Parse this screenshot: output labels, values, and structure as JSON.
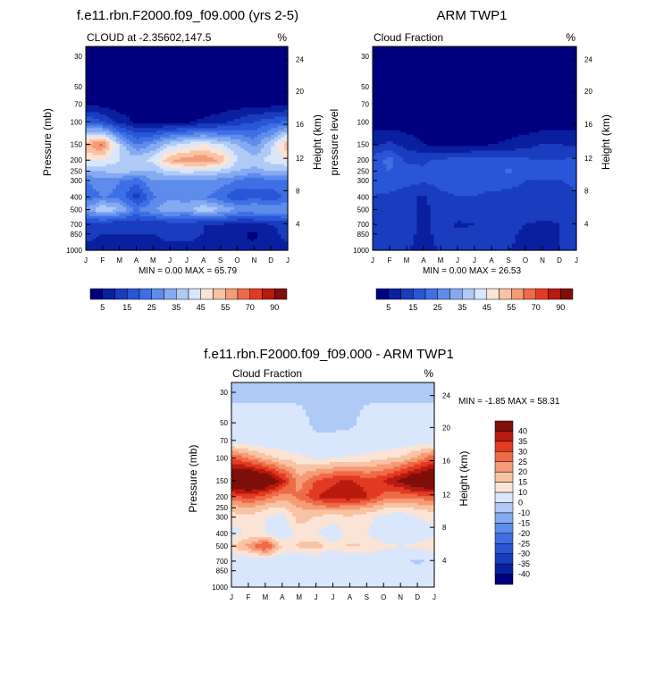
{
  "chart_data": [
    {
      "type": "heatmap",
      "title": "f.e11.rbn.F2000.f09_f09.000 (yrs 2-5)",
      "left_label": "CLOUD at -2.35602,147.5",
      "right_label": "%",
      "ylabel": "Pressure (mb)",
      "y2label": "Height (km)",
      "x_ticks": [
        "J",
        "F",
        "M",
        "A",
        "M",
        "J",
        "J",
        "A",
        "S",
        "O",
        "N",
        "D",
        "J"
      ],
      "y_ticks": [
        "30",
        "50",
        "70",
        "100",
        "150",
        "200",
        "250",
        "300",
        "400",
        "500",
        "700",
        "850",
        "1000"
      ],
      "y2_ticks": [
        "24",
        "20",
        "16",
        "12",
        "8",
        "4"
      ],
      "minmax_text": "MIN =   0.00 MAX =  65.79",
      "min": 0.0,
      "max": 65.79,
      "colorbar_labels": [
        "5",
        "15",
        "25",
        "35",
        "45",
        "55",
        "70",
        "90"
      ],
      "rows": [
        {
          "p": 30,
          "values": [
            2,
            2,
            2,
            2,
            2,
            2,
            2,
            2,
            2,
            2,
            2,
            2,
            2
          ]
        },
        {
          "p": 50,
          "values": [
            2,
            2,
            2,
            2,
            2,
            2,
            2,
            2,
            2,
            2,
            2,
            2,
            2
          ]
        },
        {
          "p": 70,
          "values": [
            4,
            3,
            2,
            2,
            2,
            2,
            2,
            2,
            2,
            2,
            3,
            3,
            4
          ]
        },
        {
          "p": 100,
          "values": [
            20,
            15,
            8,
            4,
            3,
            3,
            4,
            6,
            8,
            12,
            15,
            18,
            20
          ]
        },
        {
          "p": 150,
          "values": [
            55,
            62,
            38,
            25,
            30,
            38,
            42,
            45,
            40,
            35,
            28,
            38,
            55
          ]
        },
        {
          "p": 200,
          "values": [
            45,
            45,
            40,
            38,
            42,
            55,
            58,
            60,
            55,
            40,
            38,
            42,
            45
          ]
        },
        {
          "p": 250,
          "values": [
            35,
            35,
            38,
            35,
            35,
            40,
            42,
            40,
            38,
            35,
            33,
            35,
            35
          ]
        },
        {
          "p": 300,
          "values": [
            25,
            28,
            25,
            22,
            30,
            30,
            30,
            30,
            28,
            25,
            20,
            25,
            25
          ]
        },
        {
          "p": 400,
          "values": [
            22,
            25,
            24,
            12,
            24,
            28,
            28,
            26,
            22,
            15,
            20,
            15,
            22
          ]
        },
        {
          "p": 500,
          "values": [
            30,
            40,
            35,
            25,
            30,
            35,
            32,
            40,
            35,
            30,
            30,
            30,
            30
          ]
        },
        {
          "p": 700,
          "values": [
            12,
            12,
            10,
            10,
            10,
            12,
            12,
            10,
            10,
            8,
            8,
            10,
            12
          ]
        },
        {
          "p": 850,
          "values": [
            12,
            10,
            10,
            10,
            10,
            12,
            12,
            10,
            8,
            6,
            4,
            8,
            12
          ]
        },
        {
          "p": 1000,
          "values": [
            8,
            8,
            8,
            8,
            8,
            8,
            8,
            8,
            8,
            6,
            6,
            8,
            8
          ]
        }
      ],
      "levels": [
        5,
        10,
        15,
        20,
        25,
        30,
        35,
        40,
        45,
        50,
        55,
        60,
        70,
        80,
        90
      ],
      "colors": [
        "#00007f",
        "#0a1fa0",
        "#1a3cbf",
        "#2856d6",
        "#3f6fe4",
        "#5e8ceb",
        "#85aaf2",
        "#b0caf7",
        "#d9e6fb",
        "#fbe4d6",
        "#f8c3a5",
        "#f59b76",
        "#ee6b48",
        "#e23b22",
        "#b81a0e",
        "#7e0f0a"
      ]
    },
    {
      "type": "heatmap",
      "title": "ARM TWP1",
      "left_label": "Cloud Fraction",
      "right_label": "%",
      "ylabel": "pressure level",
      "y2label": "Height (km)",
      "x_ticks": [
        "J",
        "F",
        "M",
        "A",
        "M",
        "J",
        "J",
        "A",
        "S",
        "O",
        "N",
        "D",
        "J"
      ],
      "y_ticks": [
        "30",
        "50",
        "70",
        "100",
        "150",
        "200",
        "250",
        "300",
        "400",
        "500",
        "700",
        "850",
        "1000"
      ],
      "y2_ticks": [
        "24",
        "20",
        "16",
        "12",
        "8",
        "4"
      ],
      "minmax_text": "MIN =   0.00 MAX =  26.53",
      "min": 0.0,
      "max": 26.53,
      "colorbar_labels": [
        "5",
        "15",
        "25",
        "35",
        "45",
        "55",
        "70",
        "90"
      ],
      "rows": [
        {
          "p": 30,
          "values": [
            1,
            1,
            1,
            1,
            1,
            1,
            1,
            1,
            1,
            1,
            1,
            1,
            1
          ]
        },
        {
          "p": 50,
          "values": [
            1,
            1,
            1,
            1,
            1,
            1,
            1,
            1,
            1,
            1,
            1,
            1,
            1
          ]
        },
        {
          "p": 70,
          "values": [
            1,
            1,
            1,
            1,
            1,
            1,
            1,
            1,
            1,
            1,
            1,
            1,
            1
          ]
        },
        {
          "p": 100,
          "values": [
            2,
            2,
            2,
            1,
            1,
            1,
            1,
            1,
            1,
            1,
            2,
            2,
            2
          ]
        },
        {
          "p": 150,
          "values": [
            9,
            11,
            8,
            5,
            3,
            3,
            3,
            5,
            6,
            8,
            10,
            10,
            9
          ]
        },
        {
          "p": 200,
          "values": [
            17,
            22,
            14,
            14,
            16,
            17,
            18,
            18,
            17,
            16,
            15,
            15,
            17
          ]
        },
        {
          "p": 250,
          "values": [
            18,
            20,
            17,
            16,
            18,
            18,
            19,
            18,
            21,
            18,
            16,
            16,
            18
          ]
        },
        {
          "p": 300,
          "values": [
            16,
            18,
            17,
            16,
            17,
            16,
            16,
            17,
            16,
            15,
            15,
            15,
            16
          ]
        },
        {
          "p": 400,
          "values": [
            15,
            14,
            12,
            9,
            14,
            15,
            15,
            14,
            14,
            14,
            13,
            11,
            15
          ]
        },
        {
          "p": 500,
          "values": [
            14,
            13,
            12,
            8,
            14,
            14,
            15,
            14,
            13,
            13,
            13,
            12,
            14
          ]
        },
        {
          "p": 700,
          "values": [
            13,
            12,
            12,
            8,
            13,
            9,
            10,
            10,
            12,
            10,
            9,
            10,
            13
          ]
        },
        {
          "p": 850,
          "values": [
            12,
            12,
            12,
            8,
            12,
            11,
            12,
            11,
            11,
            9,
            8,
            10,
            12
          ]
        },
        {
          "p": 1000,
          "values": [
            10,
            10,
            10,
            9,
            10,
            10,
            10,
            10,
            10,
            9,
            9,
            10,
            10
          ]
        }
      ],
      "levels": [
        5,
        10,
        15,
        20,
        25,
        30,
        35,
        40,
        45,
        50,
        55,
        60,
        70,
        80,
        90
      ],
      "colors": [
        "#00007f",
        "#0a1fa0",
        "#1a3cbf",
        "#2856d6",
        "#3f6fe4",
        "#5e8ceb",
        "#85aaf2",
        "#b0caf7",
        "#d9e6fb",
        "#fbe4d6",
        "#f8c3a5",
        "#f59b76",
        "#ee6b48",
        "#e23b22",
        "#b81a0e",
        "#7e0f0a"
      ]
    },
    {
      "type": "heatmap",
      "title": "f.e11.rbn.F2000.f09_f09.000 - ARM TWP1",
      "left_label": "Cloud Fraction",
      "right_label": "%",
      "ylabel": "Pressure (mb)",
      "y2label": "Height (km)",
      "x_ticks": [
        "J",
        "F",
        "M",
        "A",
        "M",
        "J",
        "J",
        "A",
        "S",
        "O",
        "N",
        "D",
        "J"
      ],
      "y_ticks": [
        "30",
        "50",
        "70",
        "100",
        "150",
        "200",
        "250",
        "300",
        "400",
        "500",
        "700",
        "850",
        "1000"
      ],
      "y2_ticks": [
        "24",
        "20",
        "16",
        "12",
        "8",
        "4"
      ],
      "minmax_text": "MIN =  -1.85 MAX =  58.31",
      "min": -1.85,
      "max": 58.31,
      "colorbar_labels": [
        "40",
        "35",
        "30",
        "25",
        "20",
        "15",
        "10",
        "0",
        "-10",
        "-15",
        "-20",
        "-25",
        "-30",
        "-35",
        "-40"
      ],
      "rows": [
        {
          "p": 30,
          "values": [
            -2,
            -2,
            -2,
            -2,
            -2,
            -2,
            -2,
            -2,
            -2,
            -2,
            -2,
            -2,
            -2
          ]
        },
        {
          "p": 50,
          "values": [
            4,
            4,
            4,
            4,
            3,
            -2,
            -2,
            -2,
            3,
            4,
            4,
            4,
            4
          ]
        },
        {
          "p": 70,
          "values": [
            6,
            5,
            5,
            5,
            4,
            2,
            2,
            3,
            4,
            5,
            5,
            6,
            6
          ]
        },
        {
          "p": 100,
          "values": [
            30,
            25,
            18,
            14,
            12,
            9,
            10,
            11,
            12,
            14,
            16,
            22,
            30
          ]
        },
        {
          "p": 150,
          "values": [
            52,
            55,
            50,
            38,
            22,
            30,
            34,
            36,
            32,
            35,
            42,
            50,
            52
          ]
        },
        {
          "p": 200,
          "values": [
            28,
            32,
            28,
            22,
            26,
            35,
            38,
            40,
            36,
            28,
            26,
            28,
            28
          ]
        },
        {
          "p": 250,
          "values": [
            18,
            20,
            16,
            14,
            20,
            22,
            24,
            22,
            20,
            16,
            14,
            16,
            18
          ]
        },
        {
          "p": 300,
          "values": [
            12,
            14,
            10,
            8,
            18,
            14,
            12,
            14,
            12,
            8,
            6,
            10,
            12
          ]
        },
        {
          "p": 400,
          "values": [
            8,
            11,
            10,
            5,
            12,
            10,
            6,
            12,
            10,
            5,
            6,
            5,
            8
          ]
        },
        {
          "p": 500,
          "values": [
            15,
            22,
            33,
            14,
            16,
            18,
            12,
            16,
            15,
            12,
            10,
            12,
            15
          ]
        },
        {
          "p": 700,
          "values": [
            4,
            4,
            4,
            5,
            3,
            4,
            3,
            3,
            4,
            3,
            3,
            -2,
            4
          ]
        },
        {
          "p": 850,
          "values": [
            3,
            3,
            3,
            3,
            2,
            3,
            3,
            4,
            3,
            3,
            2,
            3,
            3
          ]
        },
        {
          "p": 1000,
          "values": [
            1,
            1,
            1,
            1,
            1,
            1,
            1,
            1,
            1,
            1,
            1,
            1,
            1
          ]
        }
      ],
      "levels": [
        -40,
        -35,
        -30,
        -25,
        -20,
        -15,
        -10,
        0,
        10,
        15,
        20,
        25,
        30,
        35,
        40
      ],
      "colors": [
        "#00007f",
        "#0a1fa0",
        "#1a3cbf",
        "#2856d6",
        "#3f6fe4",
        "#5e8ceb",
        "#85aaf2",
        "#b0caf7",
        "#d9e6fb",
        "#fbe4d6",
        "#f8c3a5",
        "#f59b76",
        "#ee6b48",
        "#e23b22",
        "#b81a0e",
        "#7e0f0a"
      ]
    }
  ]
}
